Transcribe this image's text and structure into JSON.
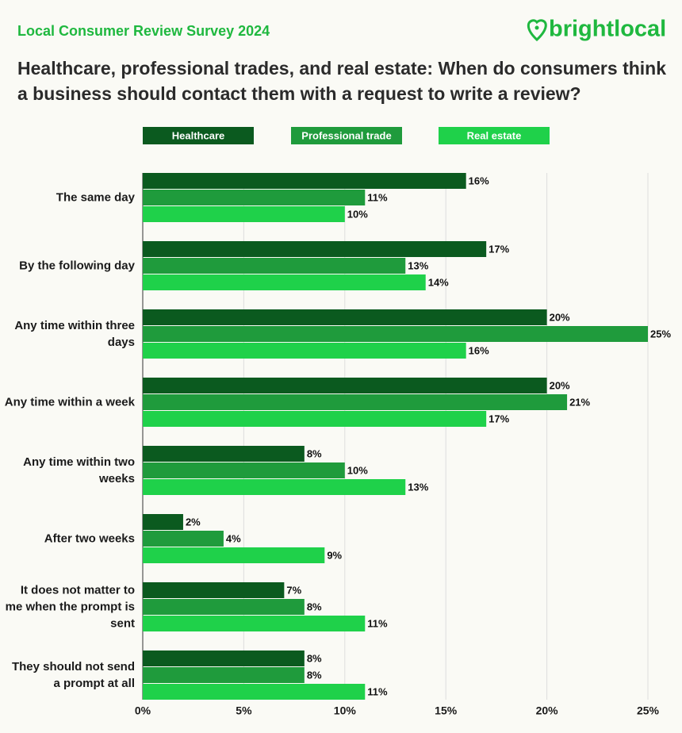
{
  "header": {
    "survey": "Local Consumer Review Survey 2024",
    "brand": "brightlocal"
  },
  "chart_data": {
    "type": "hbar",
    "title": "Healthcare, professional trades, and real estate: When do consumers think a business should contact them with a request to write a review?",
    "categories": [
      "The same day",
      "By the following day",
      "Any time within three days",
      "Any time within a week",
      "Any time within two weeks",
      "After two weeks",
      "It does not matter to me when the prompt is sent",
      "They should not send a prompt at all"
    ],
    "series": [
      {
        "name": "Healthcare",
        "color": "#0b5a1f",
        "values": [
          16,
          17,
          20,
          20,
          8,
          2,
          7,
          8
        ],
        "value_labels": [
          "16%",
          "17%",
          "20%",
          "20%",
          "8%",
          "2%",
          "7%",
          "8%"
        ]
      },
      {
        "name": "Professional trade",
        "color": "#1f9b3c",
        "values": [
          11,
          13,
          25,
          21,
          10,
          4,
          8,
          8
        ],
        "value_labels": [
          "11%",
          "13%",
          "25%",
          "21%",
          "10%",
          "4%",
          "8%",
          "8%"
        ]
      },
      {
        "name": "Real estate",
        "color": "#1fd14a",
        "values": [
          10,
          14,
          16,
          17,
          13,
          9,
          11,
          11
        ],
        "value_labels": [
          "10%",
          "14%",
          "16%",
          "17%",
          "13%",
          "9%",
          "11%",
          "11%"
        ]
      }
    ],
    "xlim": [
      0,
      25
    ],
    "xticks": [
      {
        "value": 0,
        "label": "0%"
      },
      {
        "value": 5,
        "label": "5%"
      },
      {
        "value": 10,
        "label": "10%"
      },
      {
        "value": 15,
        "label": "15%"
      },
      {
        "value": 20,
        "label": "20%"
      },
      {
        "value": 25,
        "label": "25%"
      }
    ],
    "grid": true
  }
}
